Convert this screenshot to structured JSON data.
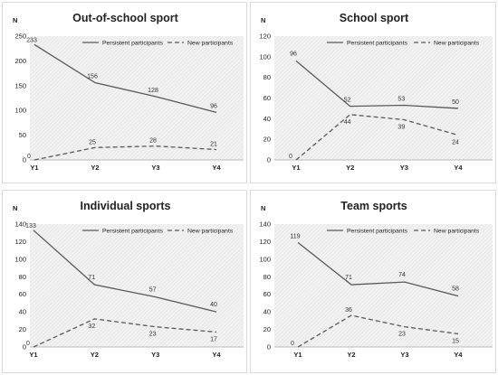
{
  "series_names": [
    "Persistent participants",
    "New participants"
  ],
  "colors": {
    "line": "#595959",
    "axis": "#a6a6a6",
    "plot_bg": "#f2f2f2",
    "hatch": "#d9d9d9"
  },
  "chart_data": [
    {
      "type": "line",
      "title": "Out-of-school sport",
      "ylabel": "N",
      "categories": [
        "Y1",
        "Y2",
        "Y3",
        "Y4"
      ],
      "ylim": [
        0,
        250
      ],
      "yticks": [
        0,
        50,
        100,
        150,
        200,
        250
      ],
      "legend": "top-right",
      "series": [
        {
          "name": "Persistent participants",
          "style": "solid",
          "values": [
            233,
            156,
            128,
            96
          ]
        },
        {
          "name": "New participants",
          "style": "dashed",
          "values": [
            0,
            25,
            28,
            21
          ]
        }
      ]
    },
    {
      "type": "line",
      "title": "School sport",
      "ylabel": "N",
      "categories": [
        "Y1",
        "Y2",
        "Y3",
        "Y4"
      ],
      "ylim": [
        0,
        120
      ],
      "yticks": [
        0,
        20,
        40,
        60,
        80,
        100,
        120
      ],
      "legend": "top-right",
      "series": [
        {
          "name": "Persistent participants",
          "style": "solid",
          "values": [
            96,
            52,
            53,
            50
          ]
        },
        {
          "name": "New participants",
          "style": "dashed",
          "values": [
            0,
            44,
            39,
            24
          ]
        }
      ]
    },
    {
      "type": "line",
      "title": "Individual sports",
      "ylabel": "N",
      "categories": [
        "Y1",
        "Y2",
        "Y3",
        "Y4"
      ],
      "ylim": [
        0,
        140
      ],
      "yticks": [
        0,
        20,
        40,
        60,
        80,
        100,
        120,
        140
      ],
      "legend": "top-right",
      "series": [
        {
          "name": "Persistent participants",
          "style": "solid",
          "values": [
            133,
            71,
            57,
            40
          ]
        },
        {
          "name": "New participants",
          "style": "dashed",
          "values": [
            0,
            32,
            23,
            17
          ]
        }
      ]
    },
    {
      "type": "line",
      "title": "Team sports",
      "ylabel": "N",
      "categories": [
        "Y1",
        "Y2",
        "Y3",
        "Y4"
      ],
      "ylim": [
        0,
        140
      ],
      "yticks": [
        0,
        20,
        40,
        60,
        80,
        100,
        120,
        140
      ],
      "legend": "top-right",
      "series": [
        {
          "name": "Persistent participants",
          "style": "solid",
          "values": [
            119,
            71,
            74,
            58
          ]
        },
        {
          "name": "New participants",
          "style": "dashed",
          "values": [
            0,
            36,
            23,
            15
          ]
        }
      ]
    }
  ]
}
